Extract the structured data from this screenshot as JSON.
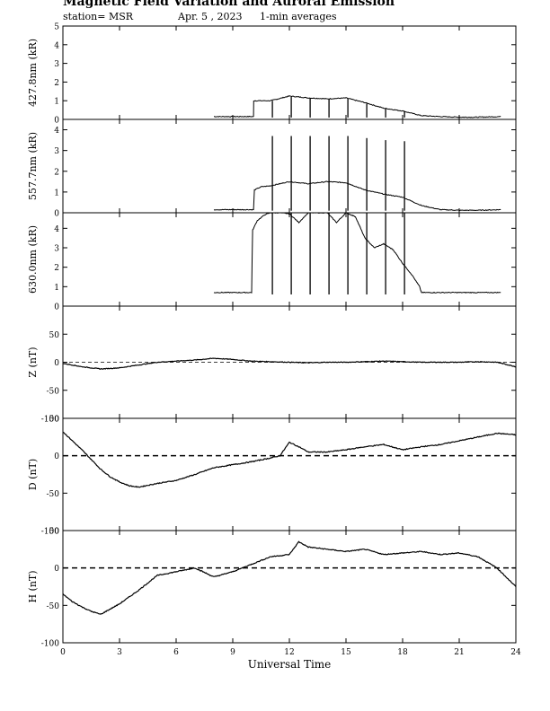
{
  "header": {
    "title": "Magnetic Field Variation and Auroral Emission",
    "station": "station= MSR",
    "date": "Apr. 5  , 2023",
    "averaging": "1-min averages"
  },
  "chart_data": [
    {
      "type": "line",
      "ylabel": "427.8nm (kR)",
      "xlim": [
        0,
        24
      ],
      "ylim": [
        0,
        5
      ],
      "yticks": [
        0,
        1,
        2,
        3,
        4,
        5
      ],
      "series": [
        {
          "x": [
            8,
            10.1,
            10.11,
            11,
            12,
            13,
            14,
            15,
            16,
            17,
            18,
            19,
            20,
            21,
            22,
            23.2
          ],
          "values": [
            0.15,
            0.15,
            1.0,
            1.0,
            1.25,
            1.15,
            1.1,
            1.15,
            0.9,
            0.6,
            0.45,
            0.2,
            0.15,
            0.12,
            0.12,
            0.15
          ]
        }
      ],
      "spikes": [
        {
          "x": 11.1,
          "top": 1.0
        },
        {
          "x": 12.1,
          "top": 1.2
        },
        {
          "x": 13.1,
          "top": 1.15
        },
        {
          "x": 14.1,
          "top": 1.1
        },
        {
          "x": 15.1,
          "top": 1.1
        },
        {
          "x": 16.1,
          "top": 0.85
        },
        {
          "x": 17.1,
          "top": 0.6
        },
        {
          "x": 18.1,
          "top": 0.45
        }
      ]
    },
    {
      "type": "line",
      "ylabel": "557.7nm (kR)",
      "xlim": [
        0,
        24
      ],
      "ylim": [
        0,
        4.5
      ],
      "yticks": [
        0,
        1,
        2,
        3,
        4
      ],
      "series": [
        {
          "x": [
            8,
            10.1,
            10.15,
            10.5,
            11,
            12,
            13,
            14,
            15,
            16,
            17,
            18,
            19,
            20,
            21,
            22,
            23.2
          ],
          "values": [
            0.15,
            0.15,
            1.1,
            1.25,
            1.3,
            1.5,
            1.4,
            1.5,
            1.45,
            1.1,
            0.9,
            0.75,
            0.35,
            0.15,
            0.12,
            0.12,
            0.15
          ]
        }
      ],
      "spikes": [
        {
          "x": 11.1,
          "top": 3.7
        },
        {
          "x": 12.1,
          "top": 3.7
        },
        {
          "x": 13.1,
          "top": 3.7
        },
        {
          "x": 14.1,
          "top": 3.7
        },
        {
          "x": 15.1,
          "top": 3.7
        },
        {
          "x": 16.1,
          "top": 3.6
        },
        {
          "x": 17.1,
          "top": 3.5
        },
        {
          "x": 18.1,
          "top": 3.45
        }
      ]
    },
    {
      "type": "line",
      "ylabel": "630.0nm (kR)",
      "xlim": [
        0,
        24
      ],
      "ylim": [
        0,
        4.8
      ],
      "yticks": [
        0,
        1,
        2,
        3,
        4
      ],
      "series": [
        {
          "x": [
            8,
            10.0,
            10.05,
            10.3,
            10.7,
            11,
            11.5,
            12,
            12.5,
            13,
            13.5,
            14,
            14.5,
            15,
            15.5,
            16,
            16.5,
            17,
            17.5,
            18,
            18.5,
            18.9,
            19.0,
            20,
            21,
            22,
            23.2
          ],
          "values": [
            0.7,
            0.7,
            3.9,
            4.4,
            4.7,
            4.8,
            4.8,
            4.75,
            4.3,
            4.8,
            4.8,
            4.8,
            4.3,
            4.8,
            4.6,
            3.5,
            3.0,
            3.2,
            2.9,
            2.2,
            1.6,
            1.0,
            0.7,
            0.7,
            0.7,
            0.7,
            0.7
          ]
        }
      ],
      "spikes": [
        {
          "x": 11.1,
          "bottom": 0.6
        },
        {
          "x": 12.1,
          "bottom": 0.6
        },
        {
          "x": 13.1,
          "bottom": 0.6
        },
        {
          "x": 14.1,
          "bottom": 0.6
        },
        {
          "x": 15.1,
          "bottom": 0.6
        },
        {
          "x": 16.1,
          "bottom": 0.6
        },
        {
          "x": 17.1,
          "bottom": 0.6
        },
        {
          "x": 18.1,
          "bottom": 0.6
        }
      ]
    },
    {
      "type": "line",
      "ylabel": "Z (nT)",
      "xlim": [
        0,
        24
      ],
      "ylim": [
        -100,
        100
      ],
      "yticks": [
        -100,
        -50,
        0,
        50
      ],
      "baseline": "thin-dashed",
      "series": [
        {
          "x": [
            0,
            1,
            2,
            3,
            4,
            5,
            6,
            7,
            8,
            9,
            10,
            11,
            12,
            13,
            14,
            15,
            16,
            17,
            18,
            19,
            20,
            21,
            22,
            23,
            24
          ],
          "values": [
            -2,
            -8,
            -12,
            -10,
            -5,
            0,
            2,
            4,
            7,
            5,
            2,
            1,
            0,
            -1,
            0,
            0,
            1,
            2,
            1,
            0,
            0,
            0,
            1,
            0,
            -8
          ]
        }
      ]
    },
    {
      "type": "line",
      "ylabel": "D (nT)",
      "xlim": [
        0,
        24
      ],
      "ylim": [
        -100,
        50
      ],
      "yticks": [
        -100,
        -50,
        0,
        50
      ],
      "baseline": "thick-dashed",
      "series": [
        {
          "x": [
            0,
            0.5,
            1,
            1.5,
            2,
            2.5,
            3,
            3.5,
            4,
            5,
            6,
            7,
            8,
            9,
            10,
            11,
            11.5,
            12,
            12.5,
            13,
            14,
            15,
            16,
            17,
            18,
            19,
            20,
            21,
            22,
            23,
            24
          ],
          "values": [
            32,
            20,
            8,
            -5,
            -18,
            -28,
            -35,
            -40,
            -42,
            -37,
            -33,
            -25,
            -16,
            -12,
            -8,
            -3,
            0,
            18,
            12,
            5,
            5,
            8,
            12,
            15,
            8,
            12,
            15,
            20,
            25,
            30,
            28
          ]
        }
      ]
    },
    {
      "type": "line",
      "ylabel": "H (nT)",
      "xlim": [
        0,
        24
      ],
      "ylim": [
        -100,
        50
      ],
      "yticks": [
        -100,
        -50,
        0,
        50
      ],
      "baseline": "thick-dashed",
      "series": [
        {
          "x": [
            0,
            0.5,
            1,
            1.5,
            2,
            3,
            4,
            5,
            6,
            7,
            8,
            9,
            10,
            11,
            12,
            12.5,
            13,
            14,
            15,
            16,
            17,
            18,
            19,
            20,
            21,
            22,
            23,
            24
          ],
          "values": [
            -35,
            -45,
            -52,
            -58,
            -62,
            -48,
            -30,
            -10,
            -5,
            0,
            -12,
            -5,
            5,
            15,
            18,
            35,
            28,
            25,
            22,
            25,
            18,
            20,
            22,
            18,
            20,
            15,
            0,
            -25
          ]
        }
      ]
    }
  ],
  "x_axis": {
    "label": "Universal Time",
    "ticks": [
      "0",
      "3",
      "6",
      "9",
      "12",
      "15",
      "18",
      "21",
      "24"
    ]
  }
}
